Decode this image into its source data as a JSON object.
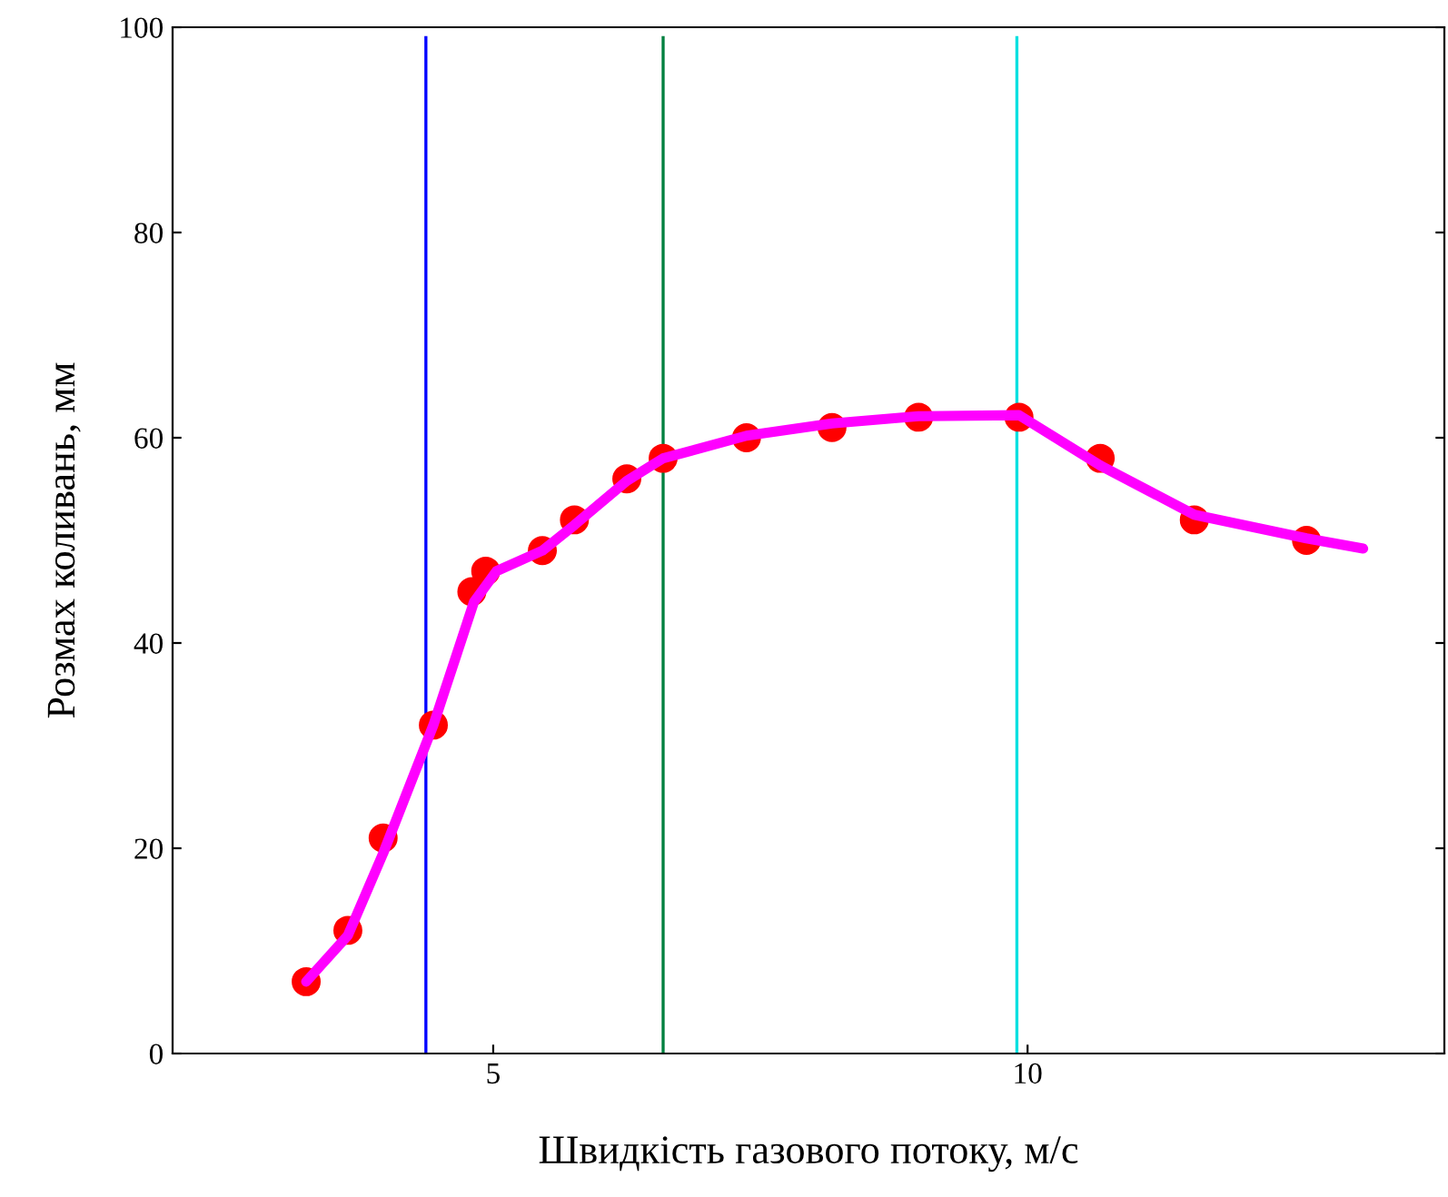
{
  "chart_data": {
    "type": "scatter",
    "xlabel": "Швидкість газового потоку, м/с",
    "ylabel": "Розмах коливань, мм",
    "xlim": [
      2,
      13.9
    ],
    "ylim": [
      0,
      100
    ],
    "xticks": [
      5,
      10
    ],
    "yticks": [
      0,
      20,
      40,
      60,
      80,
      100
    ],
    "grid": false,
    "legend": false,
    "series": [
      {
        "color": "#ff0000",
        "marker": "circle",
        "x": [
          3.25,
          3.64,
          3.97,
          4.44,
          4.8,
          4.93,
          5.46,
          5.76,
          6.25,
          6.59,
          7.37,
          8.17,
          8.98,
          9.92,
          10.68,
          11.56,
          12.61
        ],
        "values": [
          7,
          12,
          21,
          32,
          45,
          47,
          49,
          52,
          56,
          58,
          60,
          61,
          62,
          62,
          58,
          52,
          50
        ]
      },
      {
        "type": "line",
        "color": "#ff00ff",
        "marker": "none",
        "line_style": "solid",
        "x": [
          3.25,
          3.64,
          3.97,
          4.44,
          4.82,
          5.03,
          5.46,
          5.76,
          6.25,
          6.59,
          7.37,
          8.17,
          8.98,
          9.92,
          10.68,
          11.56,
          12.61,
          13.14
        ],
        "values": [
          7,
          11.5,
          19.5,
          32,
          44,
          47,
          49,
          51.5,
          55.8,
          58,
          60.2,
          61.4,
          62.1,
          62.2,
          57.3,
          52.5,
          50.2,
          49.2
        ]
      }
    ],
    "ref_lines": [
      {
        "axis": "x",
        "value": 4.37,
        "color": "#0000ff"
      },
      {
        "axis": "x",
        "value": 6.59,
        "color": "#008040"
      },
      {
        "axis": "x",
        "value": 9.9,
        "color": "#00e0e0"
      }
    ]
  }
}
